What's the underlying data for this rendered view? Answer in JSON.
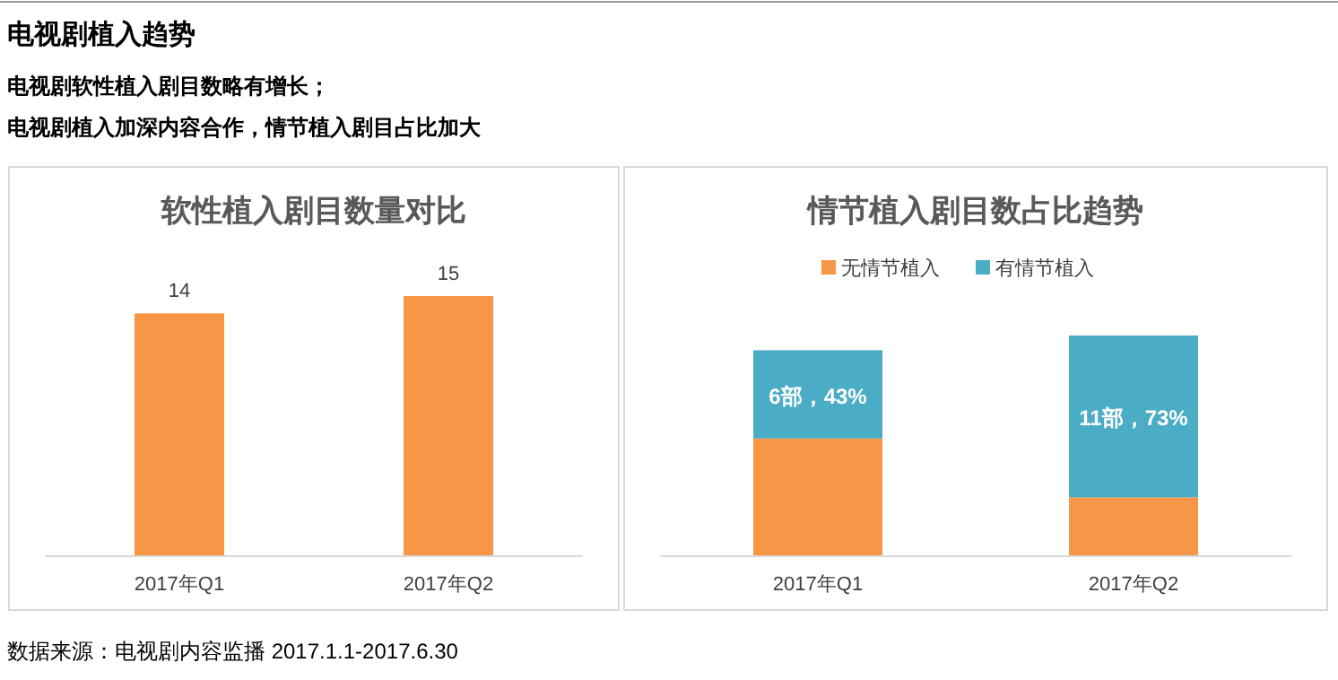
{
  "chart_data": [
    {
      "type": "bar",
      "title": "软性植入剧目数量对比",
      "categories": [
        "2017年Q1",
        "2017年Q2"
      ],
      "values": [
        14,
        15
      ],
      "color": "#f79646",
      "data_labels": true,
      "annotations": [
        "电视剧植入趋势",
        "电视剧软性植入剧目数略有增长；",
        "电视剧植入加深内容合作，情节植入剧目占比加大",
        "数据来源：电视剧内容监播 2017.1.1-2017.6.30"
      ]
    },
    {
      "type": "bar",
      "title": "情节植入剧目数占比趋势",
      "categories": [
        "2017年Q1",
        "2017年Q2"
      ],
      "stacked": true,
      "legend": "top",
      "series": [
        {
          "name": "无情节植入",
          "color": "#f79646",
          "values": [
            8,
            4
          ]
        },
        {
          "name": "有情节植入",
          "color": "#4bacc6",
          "values": [
            6,
            11
          ],
          "value_labels": [
            "6部，43%",
            "11部，73%"
          ]
        }
      ]
    }
  ]
}
